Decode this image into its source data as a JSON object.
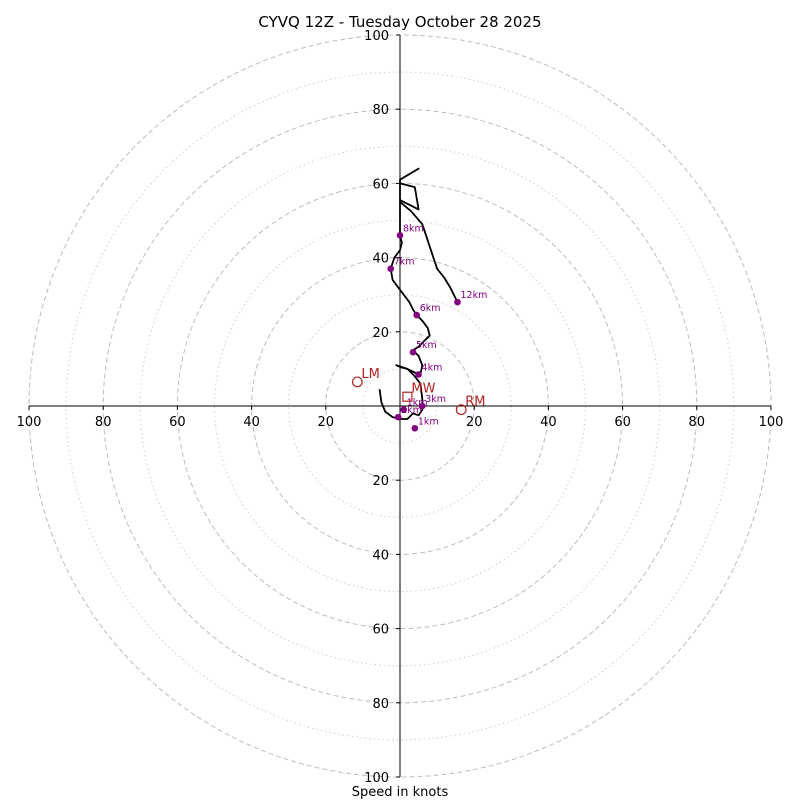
{
  "chart_data": {
    "type": "hodograph",
    "title": "CYVQ 12Z - Tuesday October 28 2025",
    "xlabel": "Speed in knots",
    "ring_range": [
      0,
      100
    ],
    "ring_major": [
      20,
      40,
      60,
      80,
      100
    ],
    "ring_minor": [
      10,
      30,
      50,
      70,
      90
    ],
    "tick_labels": {
      "left": [
        "100",
        "80",
        "60",
        "40",
        "20"
      ],
      "right": [
        "20",
        "40",
        "60",
        "80",
        "100"
      ],
      "top": [
        "100",
        "80",
        "60",
        "40",
        "20"
      ],
      "bottom": [
        "20",
        "40",
        "60",
        "80",
        "100"
      ]
    },
    "hodograph": [
      [
        -5.5,
        4.5
      ],
      [
        -5,
        1
      ],
      [
        -4,
        -1.5
      ],
      [
        -2,
        -3
      ],
      [
        0,
        -3.5
      ],
      [
        2,
        -3.5
      ],
      [
        3.5,
        -2
      ],
      [
        5,
        -2.5
      ],
      [
        6,
        -1
      ],
      [
        6,
        2
      ],
      [
        5.5,
        6
      ],
      [
        4,
        8
      ],
      [
        2,
        10
      ],
      [
        0,
        10.5
      ],
      [
        -1,
        11
      ],
      [
        2,
        10
      ],
      [
        4,
        9
      ],
      [
        5.5,
        8.5
      ],
      [
        6,
        11
      ],
      [
        5,
        13.5
      ],
      [
        3.5,
        15
      ],
      [
        5,
        16
      ],
      [
        6.5,
        17.5
      ],
      [
        8,
        19
      ],
      [
        7.5,
        21
      ],
      [
        6,
        23
      ],
      [
        4.5,
        24.5
      ],
      [
        3.5,
        26
      ],
      [
        2.5,
        28
      ],
      [
        1,
        30
      ],
      [
        -0.5,
        32
      ],
      [
        -2,
        34
      ],
      [
        -2.5,
        37
      ],
      [
        -1.5,
        40
      ],
      [
        0,
        42
      ],
      [
        0.5,
        44
      ],
      [
        0,
        46
      ],
      [
        0,
        48
      ],
      [
        0,
        50
      ],
      [
        0,
        52
      ],
      [
        0,
        55
      ],
      [
        3,
        52.5
      ],
      [
        6,
        49
      ],
      [
        7,
        46
      ],
      [
        8,
        43
      ],
      [
        9,
        40
      ],
      [
        10,
        37
      ],
      [
        12,
        34.5
      ],
      [
        13.5,
        32
      ],
      [
        15.5,
        28
      ]
    ],
    "hodograph_loop": [
      [
        0,
        55
      ],
      [
        0,
        60
      ],
      [
        4,
        59
      ],
      [
        5,
        53
      ],
      [
        0,
        55.5
      ],
      [
        0,
        61
      ],
      [
        5,
        64
      ],
      [
        0,
        61
      ]
    ],
    "height_markers": [
      {
        "label": "1km",
        "u": 4,
        "v": -6
      },
      {
        "label": "1km",
        "u": 1,
        "v": -1
      },
      {
        "label": "2km",
        "u": -0.5,
        "v": -3
      },
      {
        "label": "3km",
        "u": 6,
        "v": 0
      },
      {
        "label": "4km",
        "u": 5,
        "v": 8.5
      },
      {
        "label": "5km",
        "u": 3.5,
        "v": 14.5
      },
      {
        "label": "6km",
        "u": 4.5,
        "v": 24.5
      },
      {
        "label": "7km",
        "u": -2.5,
        "v": 37
      },
      {
        "label": "8km",
        "u": 0,
        "v": 46
      },
      {
        "label": "12km",
        "u": 15.5,
        "v": 28
      }
    ],
    "storm_motion": [
      {
        "label": "LM",
        "u": -11.5,
        "v": 6.5,
        "shape": "circle"
      },
      {
        "label": "MW",
        "u": 2,
        "v": 2.5,
        "shape": "square"
      },
      {
        "label": "RM",
        "u": 16.5,
        "v": -1,
        "shape": "circle"
      }
    ],
    "colors": {
      "line": "#000000",
      "marker": "#800080",
      "storm": "#b22222",
      "grid": "#bdbdbd"
    }
  }
}
